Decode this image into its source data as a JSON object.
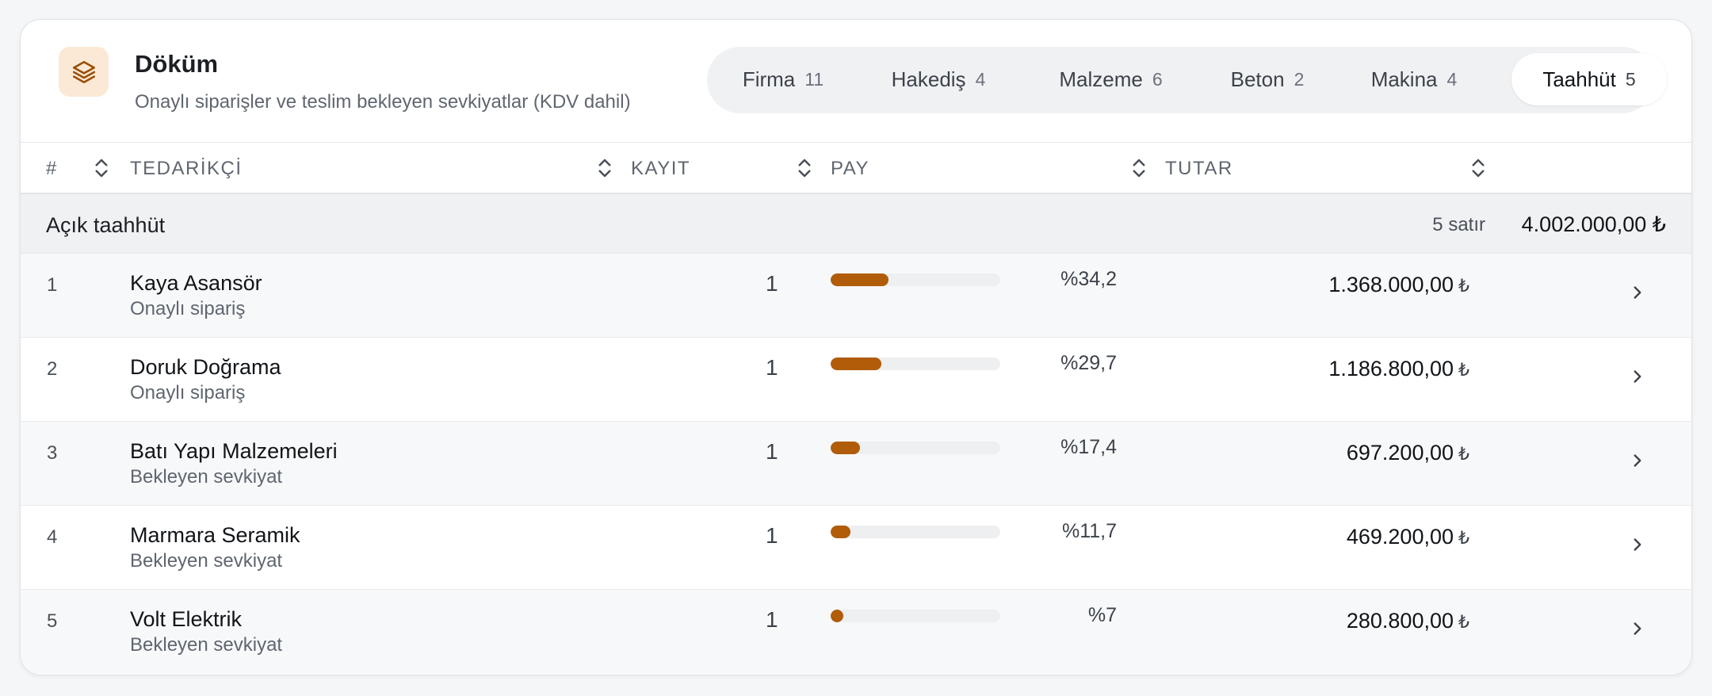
{
  "header": {
    "title": "Döküm",
    "subtitle": "Onaylı siparişler ve teslim bekleyen sevkiyatlar (KDV dahil)",
    "logo_icon": "layers-icon"
  },
  "tabs": [
    {
      "label": "Firma",
      "count": "11",
      "active": false
    },
    {
      "label": "Hakediş",
      "count": "4",
      "active": false
    },
    {
      "label": "Malzeme",
      "count": "6",
      "active": false
    },
    {
      "label": "Beton",
      "count": "2",
      "active": false
    },
    {
      "label": "Makina",
      "count": "4",
      "active": false
    },
    {
      "label": "Taahhüt",
      "count": "5",
      "active": true
    }
  ],
  "columns": {
    "num": "#",
    "supplier": "TEDARİKÇİ",
    "kayit": "KAYIT",
    "pay": "PAY",
    "tutar": "TUTAR"
  },
  "group": {
    "label": "Açık taahhüt",
    "count_text": "5 satır",
    "total": "4.002.000,00 ₺"
  },
  "rows": [
    {
      "num": "1",
      "name": "Kaya Asansör",
      "status": "Onaylı sipariş",
      "kayit": "1",
      "share": 34.2,
      "share_text": "%34,2",
      "amount": "1.368.000,00",
      "currency": "₺"
    },
    {
      "num": "2",
      "name": "Doruk Doğrama",
      "status": "Onaylı sipariş",
      "kayit": "1",
      "share": 29.7,
      "share_text": "%29,7",
      "amount": "1.186.800,00",
      "currency": "₺"
    },
    {
      "num": "3",
      "name": "Batı Yapı Malzemeleri",
      "status": "Bekleyen sevkiyat",
      "kayit": "1",
      "share": 17.4,
      "share_text": "%17,4",
      "amount": "697.200,00",
      "currency": "₺"
    },
    {
      "num": "4",
      "name": "Marmara Seramik",
      "status": "Bekleyen sevkiyat",
      "kayit": "1",
      "share": 11.7,
      "share_text": "%11,7",
      "amount": "469.200,00",
      "currency": "₺"
    },
    {
      "num": "5",
      "name": "Volt Elektrik",
      "status": "Bekleyen sevkiyat",
      "kayit": "1",
      "share": 7,
      "share_text": "%7",
      "amount": "280.800,00",
      "currency": "₺"
    }
  ],
  "colors": {
    "accent": "#b05c08",
    "logo_bg": "#fbe9d6"
  }
}
